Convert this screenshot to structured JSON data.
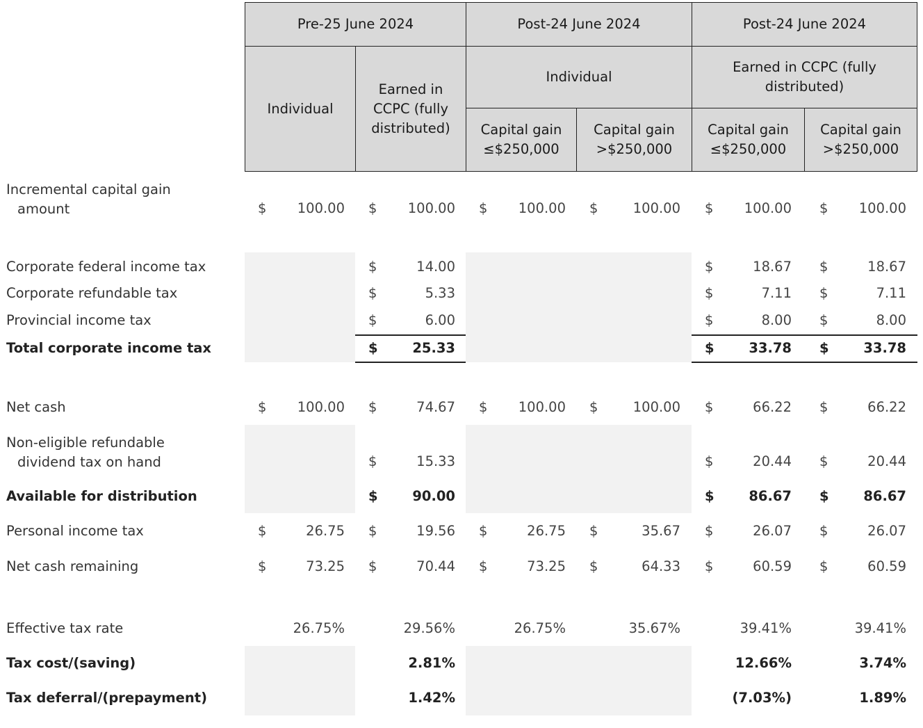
{
  "header": {
    "groups": [
      "Pre-25 June 2024",
      "Post-24 June 2024",
      "Post-24 June 2024"
    ],
    "pre_individual": "Individual",
    "pre_ccpc": "Earned in CCPC (fully distributed)",
    "post_individual": "Individual",
    "post_ccpc": "Earned in CCPC (fully distributed)",
    "sub": [
      "Capital gain ≤$250,000",
      "Capital gain >$250,000",
      "Capital gain ≤$250,000",
      "Capital gain >$250,000"
    ]
  },
  "rows": [
    {
      "label": [
        "Incremental capital gain",
        "amount"
      ],
      "bold": false,
      "cells": [
        [
          "$",
          "100.00"
        ],
        [
          "$",
          "100.00"
        ],
        [
          "$",
          "100.00"
        ],
        [
          "$",
          "100.00"
        ],
        [
          "$",
          "100.00"
        ],
        [
          "$",
          "100.00"
        ]
      ]
    },
    {
      "label": [
        "Corporate federal income tax"
      ],
      "bold": false,
      "cells": [
        null,
        [
          "$",
          "14.00"
        ],
        null,
        null,
        [
          "$",
          "18.67"
        ],
        [
          "$",
          "18.67"
        ]
      ]
    },
    {
      "label": [
        "Corporate refundable tax"
      ],
      "bold": false,
      "cells": [
        null,
        [
          "$",
          "5.33"
        ],
        null,
        null,
        [
          "$",
          "7.11"
        ],
        [
          "$",
          "7.11"
        ]
      ]
    },
    {
      "label": [
        "Provincial income tax"
      ],
      "bold": false,
      "cells": [
        null,
        [
          "$",
          "6.00"
        ],
        null,
        null,
        [
          "$",
          "8.00"
        ],
        [
          "$",
          "8.00"
        ]
      ]
    },
    {
      "label": [
        "Total corporate income tax"
      ],
      "bold": true,
      "cells": [
        null,
        [
          "$",
          "25.33"
        ],
        null,
        null,
        [
          "$",
          "33.78"
        ],
        [
          "$",
          "33.78"
        ]
      ]
    },
    {
      "label": [
        "Net cash"
      ],
      "bold": false,
      "cells": [
        [
          "$",
          "100.00"
        ],
        [
          "$",
          "74.67"
        ],
        [
          "$",
          "100.00"
        ],
        [
          "$",
          "100.00"
        ],
        [
          "$",
          "66.22"
        ],
        [
          "$",
          "66.22"
        ]
      ]
    },
    {
      "label": [
        "Non-eligible refundable",
        "dividend tax on hand"
      ],
      "bold": false,
      "cells": [
        null,
        [
          "$",
          "15.33"
        ],
        null,
        null,
        [
          "$",
          "20.44"
        ],
        [
          "$",
          "20.44"
        ]
      ]
    },
    {
      "label": [
        "Available for distribution"
      ],
      "bold": true,
      "cells": [
        null,
        [
          "$",
          "90.00"
        ],
        null,
        null,
        [
          "$",
          "86.67"
        ],
        [
          "$",
          "86.67"
        ]
      ]
    },
    {
      "label": [
        "Personal income tax"
      ],
      "bold": false,
      "cells": [
        [
          "$",
          "26.75"
        ],
        [
          "$",
          "19.56"
        ],
        [
          "$",
          "26.75"
        ],
        [
          "$",
          "35.67"
        ],
        [
          "$",
          "26.07"
        ],
        [
          "$",
          "26.07"
        ]
      ]
    },
    {
      "label": [
        "Net cash remaining"
      ],
      "bold": false,
      "cells": [
        [
          "$",
          "73.25"
        ],
        [
          "$",
          "70.44"
        ],
        [
          "$",
          "73.25"
        ],
        [
          "$",
          "64.33"
        ],
        [
          "$",
          "60.59"
        ],
        [
          "$",
          "60.59"
        ]
      ]
    },
    {
      "label": [
        "Effective tax rate"
      ],
      "bold": false,
      "cells": [
        [
          "",
          "26.75%"
        ],
        [
          "",
          "29.56%"
        ],
        [
          "",
          "26.75%"
        ],
        [
          "",
          "35.67%"
        ],
        [
          "",
          "39.41%"
        ],
        [
          "",
          "39.41%"
        ]
      ]
    },
    {
      "label": [
        "Tax cost/(saving)"
      ],
      "bold": true,
      "cells": [
        null,
        [
          "",
          "2.81%"
        ],
        null,
        null,
        [
          "",
          "12.66%"
        ],
        [
          "",
          "3.74%"
        ]
      ]
    },
    {
      "label": [
        "Tax deferral/(prepayment)"
      ],
      "bold": true,
      "cells": [
        null,
        [
          "",
          "1.42%"
        ],
        null,
        null,
        [
          "",
          "(7.03%)"
        ],
        [
          "",
          "1.89%"
        ]
      ]
    }
  ]
}
